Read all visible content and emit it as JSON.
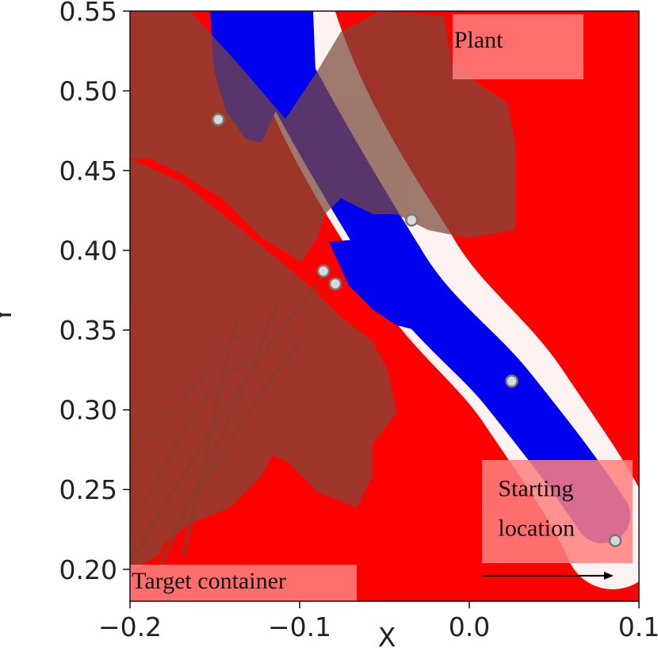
{
  "chart_data": {
    "type": "heatmap",
    "title": "",
    "xlabel": "X",
    "ylabel": "Y",
    "xlim": [
      -0.2,
      0.1
    ],
    "ylim": [
      0.18,
      0.55
    ],
    "xticks": [
      -0.2,
      -0.1,
      0.0,
      0.1
    ],
    "xtick_labels": [
      "−0.2",
      "−0.1",
      "0.0",
      "0.1"
    ],
    "yticks": [
      0.2,
      0.25,
      0.3,
      0.35,
      0.4,
      0.45,
      0.5,
      0.55
    ],
    "ytick_labels": [
      "0.20",
      "0.25",
      "0.30",
      "0.35",
      "0.40",
      "0.45",
      "0.50",
      "0.55"
    ],
    "grid": false,
    "colors": {
      "background_field": "#ff0000",
      "low_field": "#0000ee",
      "mid_field": "#ffffff",
      "plant_overlay": "#7a4a3a",
      "marker_fill": "#d8d8d8",
      "marker_edge": "#777777",
      "label_box": "#ff8080"
    },
    "path_points": [
      {
        "x": 0.086,
        "y": 0.218
      },
      {
        "x": 0.025,
        "y": 0.318
      },
      {
        "x": -0.034,
        "y": 0.419
      },
      {
        "x": -0.079,
        "y": 0.379
      },
      {
        "x": -0.086,
        "y": 0.387
      },
      {
        "x": -0.148,
        "y": 0.482
      }
    ],
    "arrow": {
      "from": {
        "x": 0.008,
        "y": 0.196
      },
      "to": {
        "x": 0.085,
        "y": 0.196
      }
    },
    "annotations": [
      {
        "id": "plant",
        "text": "Plant",
        "x": -0.009,
        "y": 0.527
      },
      {
        "id": "start-line-1",
        "text": "Starting",
        "x": 0.017,
        "y": 0.246
      },
      {
        "id": "start-line-2",
        "text": "location",
        "x": 0.017,
        "y": 0.221
      },
      {
        "id": "target",
        "text": "Target container",
        "x": -0.199,
        "y": 0.188
      }
    ]
  }
}
